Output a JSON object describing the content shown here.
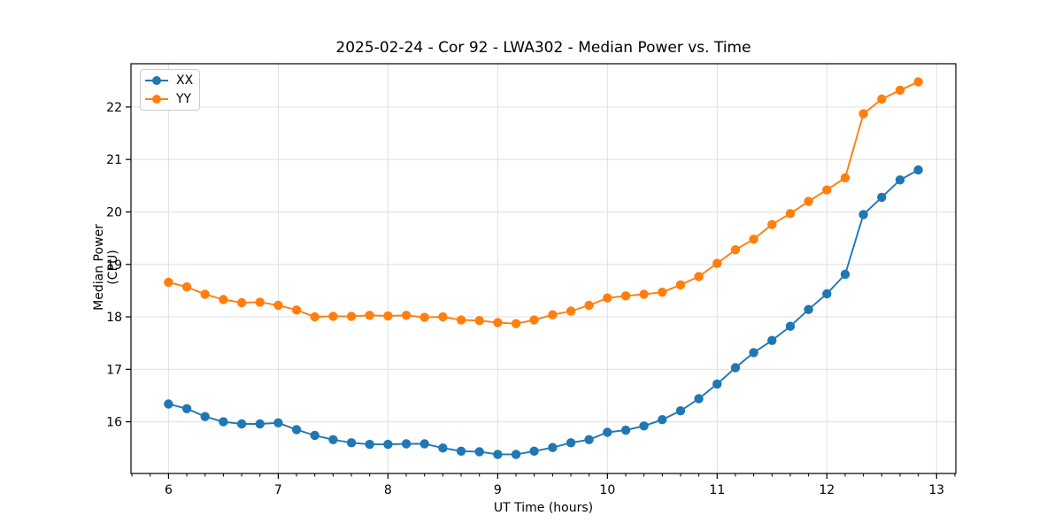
{
  "chart_data": {
    "type": "line",
    "title": "2025-02-24 - Cor 92 - LWA302 - Median Power vs. Time",
    "xlabel": "UT Time (hours)",
    "ylabel": "Median Power (CPU)",
    "xlim": [
      5.658,
      13.175
    ],
    "ylim": [
      15.015,
      22.825
    ],
    "xticks": [
      6,
      7,
      8,
      9,
      10,
      11,
      12,
      13
    ],
    "yticks": [
      16,
      17,
      18,
      19,
      20,
      21,
      22
    ],
    "x_minor_step": 0.16667,
    "grid": true,
    "grid_color": "#e0e0e0",
    "legend_position": "upper-left",
    "x": [
      6.0,
      6.167,
      6.333,
      6.5,
      6.667,
      6.833,
      7.0,
      7.167,
      7.333,
      7.5,
      7.667,
      7.833,
      8.0,
      8.167,
      8.333,
      8.5,
      8.667,
      8.833,
      9.0,
      9.167,
      9.333,
      9.5,
      9.667,
      9.833,
      10.0,
      10.167,
      10.333,
      10.5,
      10.667,
      10.833,
      11.0,
      11.167,
      11.333,
      11.5,
      11.667,
      11.833,
      12.0,
      12.167,
      12.333,
      12.5,
      12.667,
      12.833
    ],
    "series": [
      {
        "name": "XX",
        "color": "#1f77b4",
        "values": [
          16.34,
          16.25,
          16.1,
          16.0,
          15.96,
          15.96,
          15.98,
          15.85,
          15.74,
          15.66,
          15.6,
          15.57,
          15.57,
          15.58,
          15.58,
          15.5,
          15.44,
          15.43,
          15.38,
          15.38,
          15.44,
          15.51,
          15.6,
          15.66,
          15.8,
          15.84,
          15.92,
          16.04,
          16.21,
          16.44,
          16.72,
          17.03,
          17.32,
          17.55,
          17.82,
          18.14,
          18.44,
          18.81,
          19.95,
          20.28,
          20.61,
          20.8
        ],
        "marker": "circle"
      },
      {
        "name": "YY",
        "color": "#ff7f0e",
        "values": [
          18.66,
          18.57,
          18.43,
          18.33,
          18.27,
          18.28,
          18.22,
          18.13,
          18.0,
          18.01,
          18.01,
          18.03,
          18.02,
          18.03,
          17.99,
          18.0,
          17.94,
          17.93,
          17.89,
          17.87,
          17.94,
          18.04,
          18.11,
          18.22,
          18.36,
          18.4,
          18.43,
          18.47,
          18.61,
          18.77,
          19.02,
          19.28,
          19.48,
          19.76,
          19.97,
          20.2,
          20.42,
          20.65,
          21.87,
          22.15,
          22.32,
          22.48
        ],
        "marker": "circle"
      }
    ]
  }
}
